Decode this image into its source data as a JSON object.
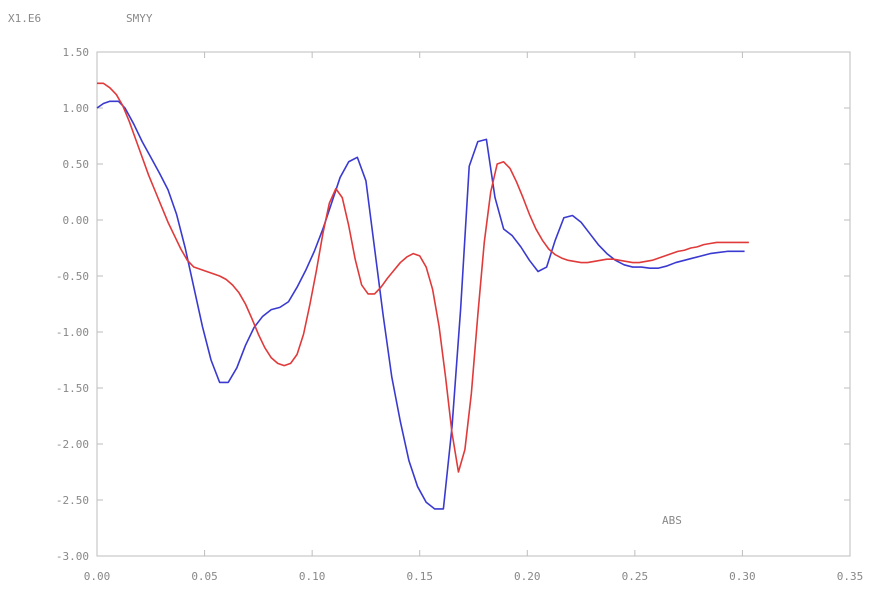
{
  "chart_data": {
    "type": "line",
    "title": "",
    "scale_label": "X1.E6",
    "ylabel": "SMYY",
    "xlabel": "ABS",
    "xlim": [
      0.0,
      0.35
    ],
    "ylim": [
      -3.0,
      1.5
    ],
    "grid": false,
    "x_ticks": [
      0.0,
      0.05,
      0.1,
      0.15,
      0.2,
      0.25,
      0.3,
      0.35
    ],
    "x_tick_labels": [
      "0.00",
      "0.05",
      "0.10",
      "0.15",
      "0.20",
      "0.25",
      "0.30",
      "0.35"
    ],
    "y_ticks": [
      1.5,
      1.0,
      0.5,
      0.0,
      -0.5,
      -1.0,
      -1.5,
      -2.0,
      -2.5,
      -3.0
    ],
    "y_tick_labels": [
      "1.50",
      "1.00",
      "0.50",
      "0.00",
      "-0.50",
      "-1.00",
      "-1.50",
      "-2.00",
      "-2.50",
      "-3.00"
    ],
    "series": [
      {
        "color": "#3a3ad0",
        "x": [
          0.0,
          0.003,
          0.006,
          0.01,
          0.013,
          0.017,
          0.021,
          0.025,
          0.029,
          0.033,
          0.037,
          0.041,
          0.045,
          0.049,
          0.053,
          0.057,
          0.061,
          0.065,
          0.069,
          0.073,
          0.077,
          0.081,
          0.085,
          0.089,
          0.093,
          0.097,
          0.101,
          0.105,
          0.109,
          0.113,
          0.117,
          0.121,
          0.125,
          0.129,
          0.133,
          0.137,
          0.141,
          0.145,
          0.149,
          0.153,
          0.157,
          0.161,
          0.165,
          0.169,
          0.173,
          0.177,
          0.181,
          0.185,
          0.189,
          0.193,
          0.197,
          0.201,
          0.205,
          0.209,
          0.213,
          0.217,
          0.221,
          0.225,
          0.229,
          0.233,
          0.237,
          0.241,
          0.245,
          0.249,
          0.253,
          0.257,
          0.261,
          0.265,
          0.269,
          0.273,
          0.277,
          0.281,
          0.285,
          0.289,
          0.293,
          0.297,
          0.301
        ],
        "y": [
          1.0,
          1.04,
          1.06,
          1.06,
          1.0,
          0.86,
          0.7,
          0.56,
          0.42,
          0.27,
          0.05,
          -0.25,
          -0.6,
          -0.95,
          -1.25,
          -1.45,
          -1.45,
          -1.32,
          -1.12,
          -0.96,
          -0.86,
          -0.8,
          -0.78,
          -0.73,
          -0.6,
          -0.45,
          -0.28,
          -0.08,
          0.15,
          0.38,
          0.52,
          0.56,
          0.35,
          -0.25,
          -0.85,
          -1.4,
          -1.8,
          -2.15,
          -2.38,
          -2.52,
          -2.58,
          -2.58,
          -1.85,
          -0.8,
          0.48,
          0.7,
          0.72,
          0.2,
          -0.08,
          -0.14,
          -0.24,
          -0.36,
          -0.46,
          -0.42,
          -0.18,
          0.02,
          0.04,
          -0.02,
          -0.12,
          -0.22,
          -0.3,
          -0.36,
          -0.4,
          -0.42,
          -0.42,
          -0.43,
          -0.43,
          -0.41,
          -0.38,
          -0.36,
          -0.34,
          -0.32,
          -0.3,
          -0.29,
          -0.28,
          -0.28,
          -0.28
        ]
      },
      {
        "color": "#e03a3a",
        "x": [
          0.0,
          0.003,
          0.006,
          0.009,
          0.012,
          0.015,
          0.018,
          0.021,
          0.024,
          0.027,
          0.03,
          0.033,
          0.036,
          0.039,
          0.042,
          0.045,
          0.048,
          0.051,
          0.054,
          0.057,
          0.06,
          0.063,
          0.066,
          0.069,
          0.072,
          0.075,
          0.078,
          0.081,
          0.084,
          0.087,
          0.09,
          0.093,
          0.096,
          0.099,
          0.102,
          0.105,
          0.108,
          0.111,
          0.114,
          0.117,
          0.12,
          0.123,
          0.126,
          0.129,
          0.132,
          0.135,
          0.138,
          0.141,
          0.144,
          0.147,
          0.15,
          0.153,
          0.156,
          0.159,
          0.162,
          0.165,
          0.168,
          0.171,
          0.174,
          0.177,
          0.18,
          0.183,
          0.186,
          0.189,
          0.192,
          0.195,
          0.198,
          0.201,
          0.204,
          0.207,
          0.21,
          0.213,
          0.216,
          0.219,
          0.222,
          0.225,
          0.228,
          0.231,
          0.234,
          0.237,
          0.24,
          0.243,
          0.246,
          0.249,
          0.252,
          0.255,
          0.258,
          0.261,
          0.264,
          0.267,
          0.27,
          0.273,
          0.276,
          0.279,
          0.282,
          0.285,
          0.288,
          0.291,
          0.294,
          0.297,
          0.3,
          0.303
        ],
        "y": [
          1.22,
          1.22,
          1.18,
          1.12,
          1.02,
          0.88,
          0.72,
          0.56,
          0.4,
          0.26,
          0.12,
          -0.02,
          -0.14,
          -0.26,
          -0.36,
          -0.42,
          -0.44,
          -0.46,
          -0.48,
          -0.5,
          -0.53,
          -0.58,
          -0.65,
          -0.75,
          -0.88,
          -1.02,
          -1.14,
          -1.23,
          -1.28,
          -1.3,
          -1.28,
          -1.2,
          -1.02,
          -0.75,
          -0.45,
          -0.12,
          0.15,
          0.28,
          0.2,
          -0.05,
          -0.35,
          -0.58,
          -0.66,
          -0.66,
          -0.6,
          -0.52,
          -0.45,
          -0.38,
          -0.33,
          -0.3,
          -0.32,
          -0.42,
          -0.62,
          -0.95,
          -1.4,
          -1.9,
          -2.25,
          -2.05,
          -1.55,
          -0.85,
          -0.2,
          0.25,
          0.5,
          0.52,
          0.46,
          0.34,
          0.2,
          0.05,
          -0.08,
          -0.18,
          -0.26,
          -0.31,
          -0.34,
          -0.36,
          -0.37,
          -0.38,
          -0.38,
          -0.37,
          -0.36,
          -0.35,
          -0.35,
          -0.36,
          -0.37,
          -0.38,
          -0.38,
          -0.37,
          -0.36,
          -0.34,
          -0.32,
          -0.3,
          -0.28,
          -0.27,
          -0.25,
          -0.24,
          -0.22,
          -0.21,
          -0.2,
          -0.2,
          -0.2,
          -0.2,
          -0.2,
          -0.2
        ]
      }
    ]
  }
}
